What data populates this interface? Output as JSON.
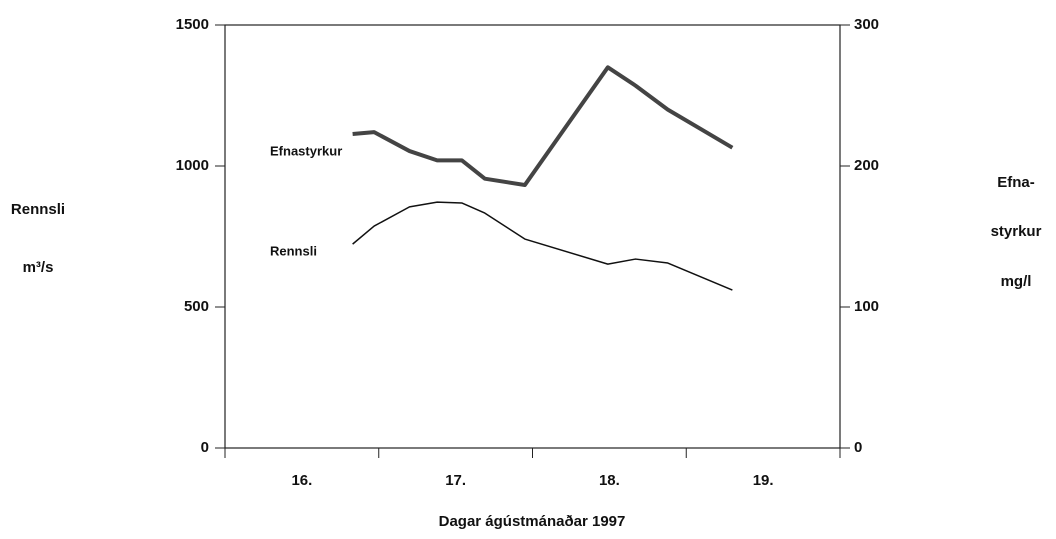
{
  "chart_data": {
    "type": "line",
    "xlabel": "Dagar ágústmánaðar 1997",
    "ylabel": [
      "Rennsli",
      "m³/s"
    ],
    "y2label": [
      "Efna-",
      "styrkur",
      "mg/l"
    ],
    "x": [
      16.83,
      16.97,
      17.2,
      17.38,
      17.54,
      17.69,
      17.95,
      18.49,
      18.67,
      18.88,
      19.3
    ],
    "xlim": [
      16,
      20
    ],
    "xtick_marks": [
      16,
      17,
      18,
      19,
      20
    ],
    "xticks": [
      {
        "value": 16.5,
        "label": "16."
      },
      {
        "value": 17.5,
        "label": "17."
      },
      {
        "value": 18.5,
        "label": "18."
      },
      {
        "value": 19.5,
        "label": "19."
      }
    ],
    "ylim": [
      0,
      1500
    ],
    "yticks": [
      0,
      500,
      1000,
      1500
    ],
    "y2lim": [
      0,
      300
    ],
    "y2ticks": [
      0,
      100,
      200,
      300
    ],
    "series": [
      {
        "name": "Efnastyrkur",
        "color": "#444444",
        "axis": "y2",
        "values": [
          222.7,
          224,
          210.6,
          204,
          204,
          191,
          186.5,
          270,
          257,
          240,
          213
        ]
      },
      {
        "name": "Rennsli",
        "color": "#111111",
        "values": [
          723,
          787,
          855,
          872,
          869,
          833,
          741,
          652,
          670,
          656,
          560
        ]
      }
    ]
  }
}
